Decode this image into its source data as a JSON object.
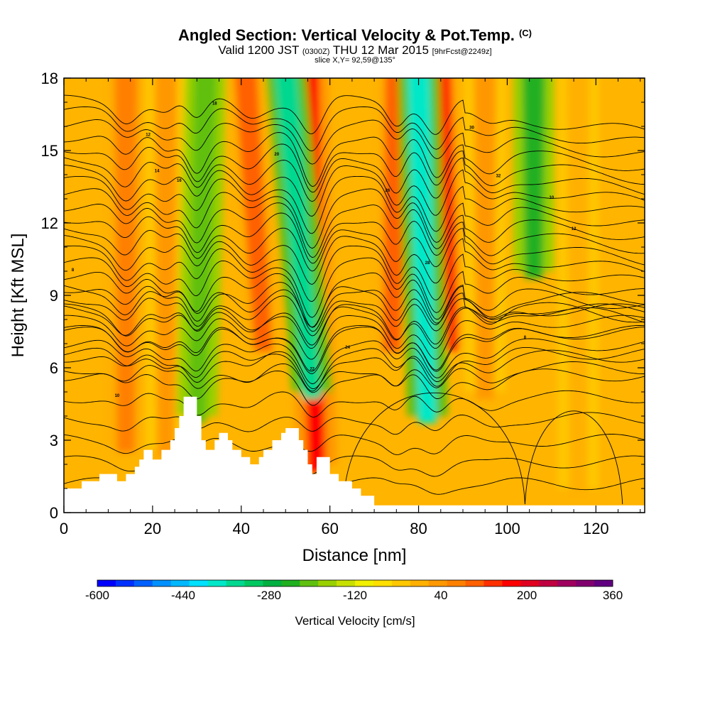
{
  "title": {
    "main": "Angled Section: Vertical Velocity & Pot.Temp.",
    "main_units": "(C)",
    "line2_a": "Valid 1200 JST",
    "line2_b": "(0300Z)",
    "line2_c": "THU 12 Mar 2015",
    "line2_d": "[9hrFcst@2249z]",
    "line3": "slice X,Y= 92,59@135°"
  },
  "chart_data": {
    "type": "heatmap",
    "xlabel": "Distance [nm]",
    "ylabel": "Height [Kft MSL]",
    "xlim": [
      0,
      131
    ],
    "ylim": [
      0,
      18
    ],
    "xticks": [
      0,
      20,
      40,
      60,
      80,
      100,
      120
    ],
    "yticks": [
      0,
      3,
      6,
      9,
      12,
      15,
      18
    ],
    "colorbar": {
      "title": "Vertical Velocity [cm/s]",
      "range": [
        -600,
        360
      ],
      "step": 40,
      "tick_labels": [
        "-600",
        "-440",
        "-280",
        "-120",
        "40",
        "200",
        "360"
      ],
      "colors": [
        "#0000ff",
        "#0030ff",
        "#0060ff",
        "#0090ff",
        "#00b8ff",
        "#00e0ff",
        "#00e8c8",
        "#00d890",
        "#00c860",
        "#00b040",
        "#20b020",
        "#60c010",
        "#98d000",
        "#c8e000",
        "#f0f000",
        "#ffe000",
        "#ffc800",
        "#ffb000",
        "#ff9800",
        "#ff8000",
        "#ff6000",
        "#ff3000",
        "#ff0000",
        "#e00020",
        "#c00040",
        "#a00060",
        "#800070",
        "#600080"
      ]
    },
    "terrain_kft": [
      [
        0,
        1.0
      ],
      [
        4,
        1.0
      ],
      [
        4,
        1.3
      ],
      [
        8,
        1.3
      ],
      [
        8,
        1.6
      ],
      [
        12,
        1.6
      ],
      [
        12,
        1.3
      ],
      [
        14,
        1.3
      ],
      [
        14,
        1.6
      ],
      [
        16,
        1.6
      ],
      [
        16,
        1.9
      ],
      [
        17,
        1.9
      ],
      [
        17,
        2.2
      ],
      [
        18,
        2.2
      ],
      [
        18,
        2.6
      ],
      [
        20,
        2.6
      ],
      [
        20,
        2.2
      ],
      [
        22,
        2.2
      ],
      [
        22,
        2.6
      ],
      [
        24,
        2.6
      ],
      [
        24,
        3.0
      ],
      [
        25,
        3.0
      ],
      [
        25,
        3.5
      ],
      [
        26,
        3.5
      ],
      [
        26,
        4.0
      ],
      [
        27,
        4.0
      ],
      [
        27,
        4.8
      ],
      [
        30,
        4.8
      ],
      [
        30,
        4.0
      ],
      [
        31,
        4.0
      ],
      [
        31,
        3.0
      ],
      [
        32,
        3.0
      ],
      [
        32,
        2.6
      ],
      [
        34,
        2.6
      ],
      [
        34,
        3.0
      ],
      [
        35,
        3.0
      ],
      [
        35,
        3.3
      ],
      [
        37,
        3.3
      ],
      [
        37,
        3.0
      ],
      [
        38,
        3.0
      ],
      [
        38,
        2.6
      ],
      [
        40,
        2.6
      ],
      [
        40,
        2.3
      ],
      [
        42,
        2.3
      ],
      [
        42,
        2.0
      ],
      [
        44,
        2.0
      ],
      [
        44,
        2.3
      ],
      [
        45,
        2.3
      ],
      [
        45,
        2.6
      ],
      [
        47,
        2.6
      ],
      [
        47,
        3.0
      ],
      [
        49,
        3.0
      ],
      [
        49,
        3.3
      ],
      [
        50,
        3.3
      ],
      [
        50,
        3.5
      ],
      [
        53,
        3.5
      ],
      [
        53,
        3.0
      ],
      [
        54,
        3.0
      ],
      [
        54,
        2.6
      ],
      [
        55,
        2.6
      ],
      [
        55,
        2.0
      ],
      [
        56,
        2.0
      ],
      [
        56,
        1.6
      ],
      [
        57,
        1.6
      ],
      [
        57,
        2.3
      ],
      [
        60,
        2.3
      ],
      [
        60,
        1.6
      ],
      [
        62,
        1.6
      ],
      [
        62,
        1.3
      ],
      [
        65,
        1.3
      ],
      [
        65,
        1.0
      ],
      [
        67,
        1.0
      ],
      [
        67,
        0.7
      ],
      [
        70,
        0.7
      ],
      [
        70,
        0.3
      ],
      [
        131,
        0.3
      ]
    ],
    "updraft_bands": [
      {
        "x_top": 14,
        "x_bottom": 14,
        "y_min": 2.8,
        "w_cm_s": 180
      },
      {
        "x_top": 23,
        "x_bottom": 23,
        "y_min": 2.6,
        "w_cm_s": 120
      },
      {
        "x_top": 41,
        "x_bottom": 45,
        "y_min": 7.0,
        "w_cm_s": 200
      },
      {
        "x_top": 55,
        "x_bottom": 57,
        "y_min": 2.0,
        "w_cm_s": 280
      },
      {
        "x_top": 75,
        "x_bottom": 74,
        "y_min": 7.0,
        "w_cm_s": 200
      },
      {
        "x_top": 85,
        "x_bottom": 87,
        "y_min": 7.0,
        "w_cm_s": 260
      },
      {
        "x_top": 95,
        "x_bottom": 95,
        "y_min": 5.0,
        "w_cm_s": 120
      },
      {
        "x_top": 116,
        "x_bottom": 116,
        "y_min": 1.0,
        "w_cm_s": 100
      }
    ],
    "downdraft_bands": [
      {
        "x_top": 32,
        "x_bottom": 30,
        "y_min": 4.0,
        "w_cm_s": -140
      },
      {
        "x_top": 50,
        "x_bottom": 56,
        "y_min": 5.0,
        "w_cm_s": -300
      },
      {
        "x_top": 80,
        "x_bottom": 82,
        "y_min": 4.0,
        "w_cm_s": -340
      },
      {
        "x_top": 106,
        "x_bottom": 106,
        "y_min": 10.0,
        "w_cm_s": -180
      }
    ],
    "contour_labels": [
      "8",
      "10",
      "12",
      "14",
      "16",
      "18",
      "20",
      "22",
      "24",
      "26",
      "28",
      "30",
      "32"
    ]
  }
}
